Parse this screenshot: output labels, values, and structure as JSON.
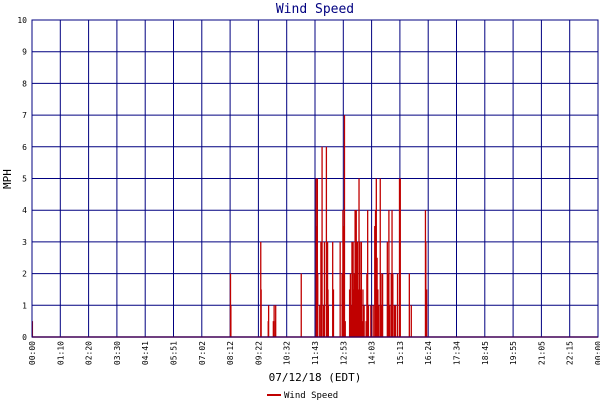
{
  "colors": {
    "background": "#ffffff",
    "grid": "#000080",
    "series": "#c00000",
    "title": "#000080",
    "text": "#000000"
  },
  "chart_data": {
    "type": "bar",
    "title": "Wind Speed",
    "xlabel": "07/12/18 (EDT)",
    "ylabel": "MPH",
    "ylim": [
      0,
      10
    ],
    "yticks": [
      "0",
      "1",
      "2",
      "3",
      "4",
      "5",
      "6",
      "7",
      "8",
      "9",
      "10"
    ],
    "xlim_minutes": [
      0,
      1440
    ],
    "xticks": [
      "00:00",
      "01:10",
      "02:20",
      "03:30",
      "04:41",
      "05:51",
      "07:02",
      "08:12",
      "09:22",
      "10:32",
      "11:43",
      "12:53",
      "14:03",
      "15:13",
      "16:24",
      "17:34",
      "18:45",
      "19:55",
      "21:05",
      "22:15",
      "00:00"
    ],
    "grid": true,
    "legend": {
      "position": "bottom-center",
      "entries": [
        "Wind Speed"
      ]
    },
    "series": [
      {
        "name": "Wind Speed",
        "points": [
          [
            1,
            0.5
          ],
          [
            505,
            2.0
          ],
          [
            506,
            1.0
          ],
          [
            582,
            3.0
          ],
          [
            583,
            1.5
          ],
          [
            601,
            0.5
          ],
          [
            602,
            1.0
          ],
          [
            614,
            0.5
          ],
          [
            616,
            1.0
          ],
          [
            619,
            0.5
          ],
          [
            620,
            1.0
          ],
          [
            685,
            2.0
          ],
          [
            723,
            5.0
          ],
          [
            725,
            3.5
          ],
          [
            726,
            5.0
          ],
          [
            727,
            2.0
          ],
          [
            732,
            1.0
          ],
          [
            735,
            3.0
          ],
          [
            738,
            6.0
          ],
          [
            742,
            1.0
          ],
          [
            744,
            3.0
          ],
          [
            749,
            6.0
          ],
          [
            752,
            3.0
          ],
          [
            753,
            1.5
          ],
          [
            754,
            1.0
          ],
          [
            765,
            3.0
          ],
          [
            767,
            1.5
          ],
          [
            784,
            3.0
          ],
          [
            789,
            2.0
          ],
          [
            791,
            4.0
          ],
          [
            793,
            3.5
          ],
          [
            795,
            7.0
          ],
          [
            797,
            0.5
          ],
          [
            808,
            1.5
          ],
          [
            810,
            2.0
          ],
          [
            812,
            1.0
          ],
          [
            814,
            3.0
          ],
          [
            817,
            3.0
          ],
          [
            818,
            1.5
          ],
          [
            820,
            2.0
          ],
          [
            822,
            4.0
          ],
          [
            823,
            4.0
          ],
          [
            824,
            2.0
          ],
          [
            825,
            4.0
          ],
          [
            826,
            3.0
          ],
          [
            827,
            1.5
          ],
          [
            828,
            3.0
          ],
          [
            830,
            1.5
          ],
          [
            832,
            5.0
          ],
          [
            833,
            2.0
          ],
          [
            834,
            3.0
          ],
          [
            836,
            1.5
          ],
          [
            838,
            3.0
          ],
          [
            840,
            0.5
          ],
          [
            842,
            1.5
          ],
          [
            843,
            0.5
          ],
          [
            845,
            1.0
          ],
          [
            850,
            0.5
          ],
          [
            852,
            2.0
          ],
          [
            854,
            4.0
          ],
          [
            856,
            1.0
          ],
          [
            862,
            1.0
          ],
          [
            868,
            1.0
          ],
          [
            872,
            3.5
          ],
          [
            874,
            4.0
          ],
          [
            876,
            5.0
          ],
          [
            878,
            2.5
          ],
          [
            880,
            1.5
          ],
          [
            882,
            1.0
          ],
          [
            886,
            5.0
          ],
          [
            888,
            2.0
          ],
          [
            890,
            1.0
          ],
          [
            892,
            2.0
          ],
          [
            904,
            3.0
          ],
          [
            906,
            2.0
          ],
          [
            908,
            4.0
          ],
          [
            910,
            1.0
          ],
          [
            914,
            2.0
          ],
          [
            916,
            4.0
          ],
          [
            918,
            2.0
          ],
          [
            922,
            1.0
          ],
          [
            925,
            1.0
          ],
          [
            930,
            2.0
          ],
          [
            935,
            5.0
          ],
          [
            937,
            5.0
          ],
          [
            960,
            2.0
          ],
          [
            965,
            1.0
          ],
          [
            1001,
            4.0
          ],
          [
            1002,
            3.0
          ],
          [
            1004,
            1.5
          ]
        ]
      }
    ]
  }
}
